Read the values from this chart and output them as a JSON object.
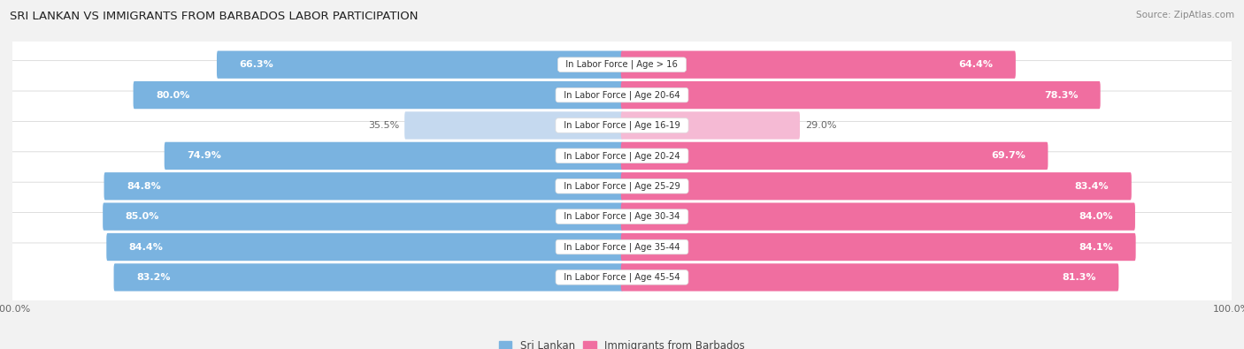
{
  "title": "SRI LANKAN VS IMMIGRANTS FROM BARBADOS LABOR PARTICIPATION",
  "source": "Source: ZipAtlas.com",
  "categories": [
    "In Labor Force | Age > 16",
    "In Labor Force | Age 20-64",
    "In Labor Force | Age 16-19",
    "In Labor Force | Age 20-24",
    "In Labor Force | Age 25-29",
    "In Labor Force | Age 30-34",
    "In Labor Force | Age 35-44",
    "In Labor Force | Age 45-54"
  ],
  "sri_lankan": [
    66.3,
    80.0,
    35.5,
    74.9,
    84.8,
    85.0,
    84.4,
    83.2
  ],
  "barbados": [
    64.4,
    78.3,
    29.0,
    69.7,
    83.4,
    84.0,
    84.1,
    81.3
  ],
  "sri_lankan_color_full": "#7ab3e0",
  "sri_lankan_color_light": "#c5d9ef",
  "barbados_color_full": "#f06ea0",
  "barbados_color_light": "#f5bad4",
  "label_color_dark": "#666666",
  "background_color": "#f2f2f2",
  "row_bg_color": "#ffffff",
  "row_bg_color_alt": "#f8f8f8",
  "center_label_bg": "#ffffff",
  "max_value": 100.0,
  "legend_sri_lankan": "Sri Lankan",
  "legend_barbados": "Immigrants from Barbados"
}
